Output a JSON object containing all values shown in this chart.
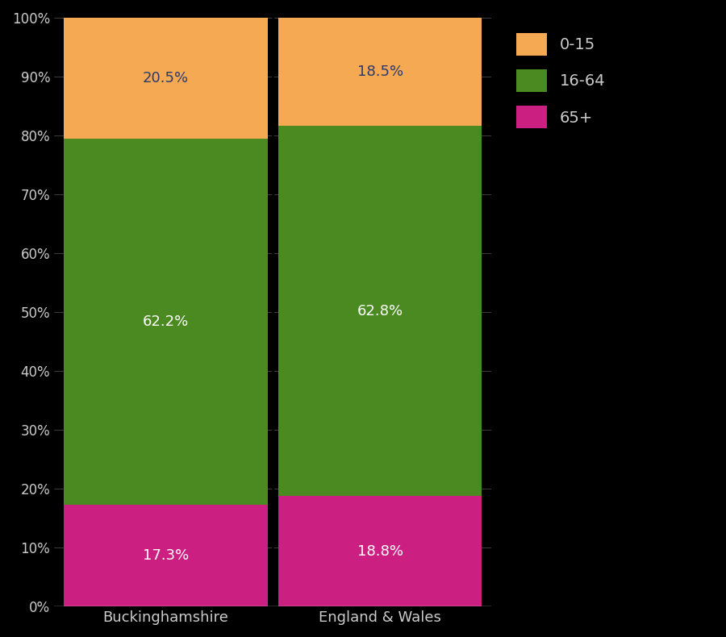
{
  "categories": [
    "Buckinghamshire",
    "England & Wales"
  ],
  "segments": {
    "65+": [
      17.3,
      18.8
    ],
    "16-64": [
      62.2,
      62.8
    ],
    "0-15": [
      20.5,
      18.5
    ]
  },
  "colors": {
    "65+": "#cc1f82",
    "16-64": "#4a8a20",
    "0-15": "#f5a952"
  },
  "label_colors": {
    "65+": "#ffffff",
    "16-64": "#ffffff",
    "0-15": "#2a3a6e"
  },
  "background_color": "#000000",
  "axes_background_color": "#000000",
  "text_color": "#cccccc",
  "ytick_labels": [
    "0%",
    "10%",
    "20%",
    "30%",
    "40%",
    "50%",
    "60%",
    "70%",
    "80%",
    "90%",
    "100%"
  ],
  "ytick_values": [
    0,
    10,
    20,
    30,
    40,
    50,
    60,
    70,
    80,
    90,
    100
  ],
  "legend_labels": [
    "0-15",
    "16-64",
    "65+"
  ],
  "figsize": [
    9.0,
    7.9
  ],
  "dpi": 100
}
